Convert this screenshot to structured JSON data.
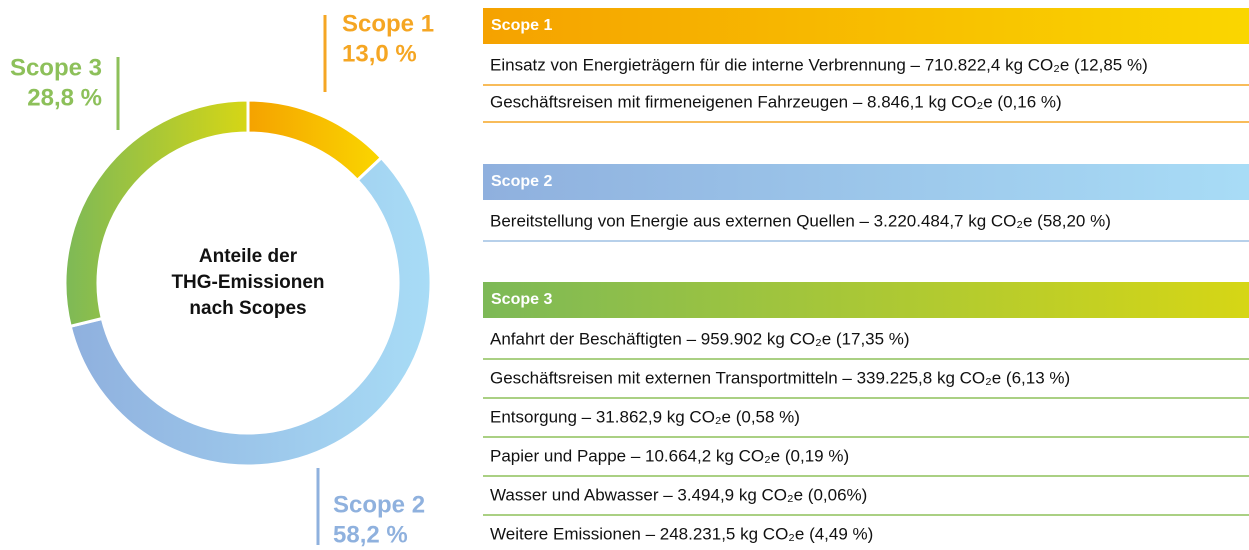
{
  "chart_data": {
    "type": "pie",
    "donut": true,
    "center_label": [
      "Anteile der",
      "THG-Emissionen",
      "nach Scopes"
    ],
    "categories": [
      "Scope 1",
      "Scope 2",
      "Scope 3"
    ],
    "values": [
      13.0,
      58.2,
      28.8
    ],
    "value_labels": [
      "13,0 %",
      "58,2 %",
      "28,8 %"
    ],
    "colors": [
      "#f5a623",
      "#8fb1de",
      "#8dc05a"
    ],
    "gradients": [
      [
        "#f5a200",
        "#fad600"
      ],
      [
        "#8fb0de",
        "#a8dcf6"
      ],
      [
        "#7db957",
        "#d6d615"
      ]
    ]
  },
  "breakdown": [
    {
      "title": "Scope 1",
      "items": [
        "Einsatz von Energieträgern für die interne Verbrennung – 710.822,4 kg CO₂e (12,85 %)",
        "Geschäftsreisen mit firmeneigenen Fahrzeugen – 8.846,1 kg CO₂e (0,16 %)"
      ]
    },
    {
      "title": "Scope 2",
      "items": [
        "Bereitstellung von Energie aus externen Quellen – 3.220.484,7 kg CO₂e (58,20 %)"
      ]
    },
    {
      "title": "Scope 3",
      "items": [
        "Anfahrt der Beschäftigten – 959.902 kg CO₂e (17,35 %)",
        "Geschäftsreisen mit externen Transportmitteln – 339.225,8 kg CO₂e (6,13 %)",
        "Entsorgung – 31.862,9 kg CO₂e (0,58 %)",
        "Papier und Pappe – 10.664,2 kg CO₂e (0,19 %)",
        "Wasser und Abwasser – 3.494,9 kg CO₂e (0,06%)",
        "Weitere Emissionen – 248.231,5 kg CO₂e (4,49 %)"
      ]
    }
  ]
}
